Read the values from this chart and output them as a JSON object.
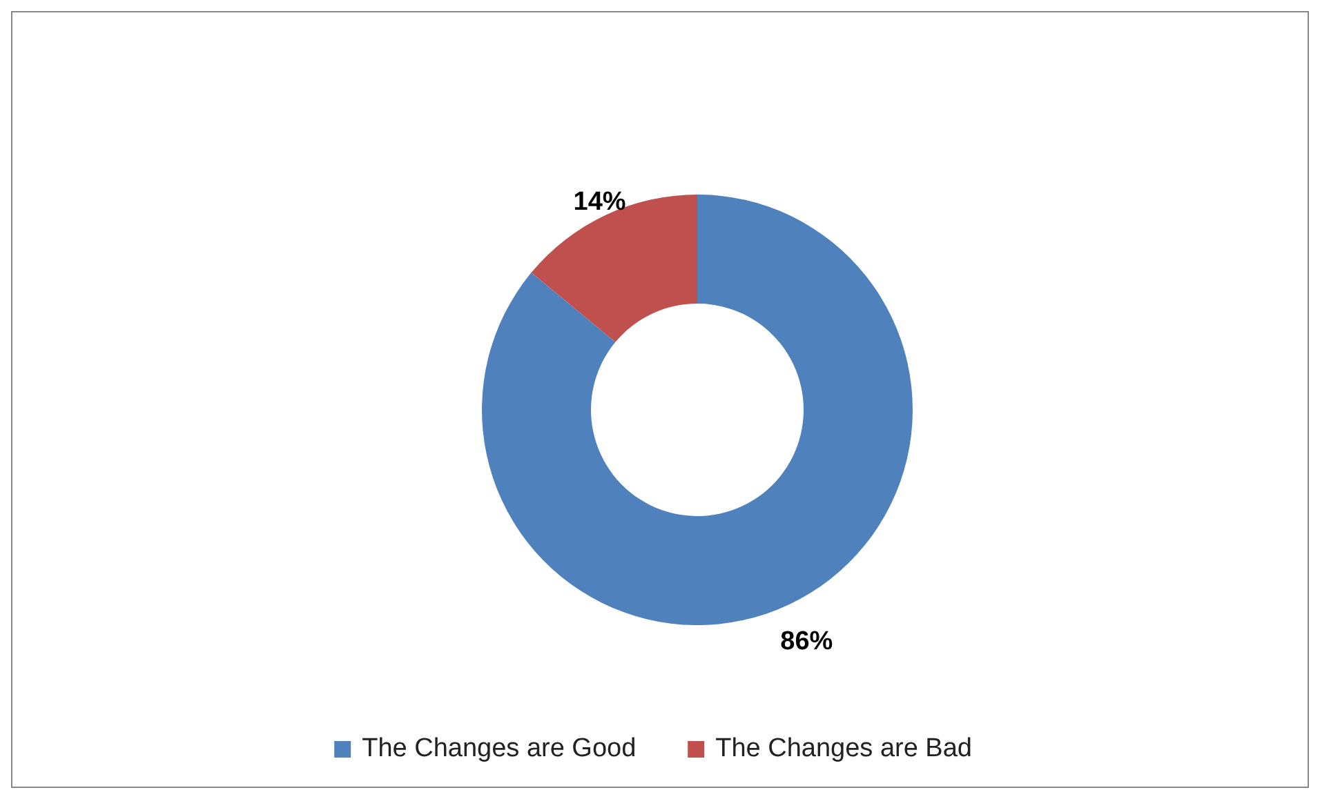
{
  "chart_data": {
    "type": "donut",
    "categories": [
      "The Changes are Good",
      "The Changes are Bad"
    ],
    "values": [
      86,
      14
    ],
    "colors": [
      "#4f81bd",
      "#c0504d"
    ],
    "value_labels": [
      "86%",
      "14%"
    ],
    "legend": "bottom"
  }
}
